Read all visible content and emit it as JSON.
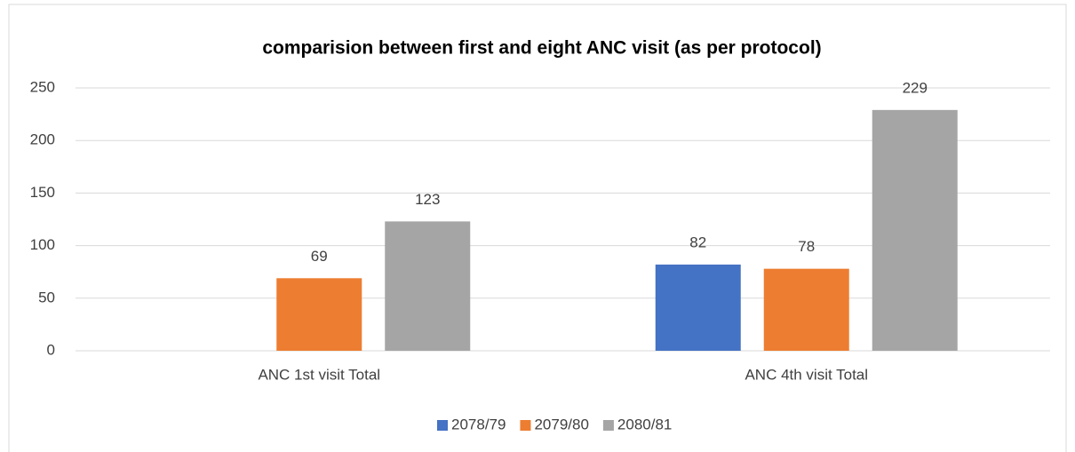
{
  "chart_data": {
    "type": "bar",
    "title": "comparision between first and eight ANC visit (as per protocol)",
    "categories": [
      "ANC 1st visit Total",
      "ANC 4th visit Total"
    ],
    "series": [
      {
        "name": "2078/79",
        "color": "#4472c4",
        "values": [
          null,
          82
        ]
      },
      {
        "name": "2079/80",
        "color": "#ed7d31",
        "values": [
          69,
          78
        ]
      },
      {
        "name": "2080/81",
        "color": "#a5a5a5",
        "values": [
          123,
          229
        ]
      }
    ],
    "ylim": [
      0,
      250
    ],
    "yticks": [
      0,
      50,
      100,
      150,
      200,
      250
    ],
    "grid": true,
    "legend": "bottom"
  }
}
